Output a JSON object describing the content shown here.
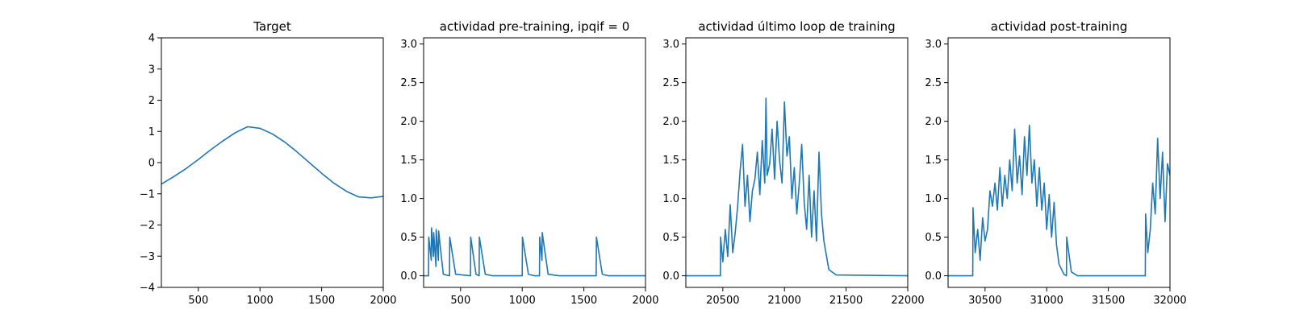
{
  "chart_data": [
    {
      "type": "line",
      "title": "Target",
      "xlabel": "",
      "ylabel": "",
      "xlim": [
        200,
        2000
      ],
      "ylim": [
        -4,
        4
      ],
      "xticks": [
        500,
        1000,
        1500,
        2000
      ],
      "yticks": [
        -4,
        -3,
        -2,
        -1,
        0,
        1,
        2,
        3,
        4
      ],
      "grid": false,
      "series": [
        {
          "color": "#1f77b4",
          "x": [
            200,
            300,
            400,
            500,
            600,
            700,
            800,
            900,
            1000,
            1100,
            1200,
            1300,
            1400,
            1500,
            1600,
            1700,
            1800,
            1900,
            2000
          ],
          "y": [
            -0.69,
            -0.45,
            -0.19,
            0.1,
            0.41,
            0.7,
            0.96,
            1.15,
            1.1,
            0.92,
            0.66,
            0.34,
            0.0,
            -0.34,
            -0.66,
            -0.92,
            -1.1,
            -1.13,
            -1.08
          ]
        }
      ]
    },
    {
      "type": "line",
      "title": "actividad pre-training, ipqif = 0",
      "xlabel": "",
      "ylabel": "",
      "xlim": [
        200,
        2000
      ],
      "ylim": [
        -0.15,
        3.08
      ],
      "xticks": [
        500,
        1000,
        1500,
        2000
      ],
      "yticks": [
        0.0,
        0.5,
        1.0,
        1.5,
        2.0,
        2.5,
        3.0
      ],
      "grid": false,
      "series": [
        {
          "color": "#1f77b4",
          "x": [
            200,
            240,
            242,
            262,
            264,
            280,
            282,
            300,
            302,
            320,
            322,
            360,
            410,
            412,
            460,
            580,
            582,
            625,
            650,
            652,
            700,
            760,
            1000,
            1002,
            1050,
            1100,
            1140,
            1142,
            1160,
            1162,
            1210,
            1300,
            1600,
            1602,
            1650,
            1700,
            2000
          ],
          "y": [
            0,
            0,
            0.5,
            0.2,
            0.62,
            0.25,
            0.56,
            0.12,
            0.6,
            0.2,
            0.58,
            0.02,
            0.0,
            0.5,
            0.02,
            0.0,
            0.5,
            0.02,
            0.0,
            0.5,
            0.02,
            0.0,
            0.0,
            0.5,
            0.02,
            0.0,
            0.0,
            0.5,
            0.2,
            0.56,
            0.02,
            0.0,
            0.0,
            0.5,
            0.02,
            0.0,
            0.0
          ]
        }
      ]
    },
    {
      "type": "line",
      "title": "actividad último loop de training",
      "xlabel": "",
      "ylabel": "",
      "xlim": [
        20200,
        22000
      ],
      "ylim": [
        -0.15,
        3.08
      ],
      "xticks": [
        20500,
        21000,
        21500,
        22000
      ],
      "yticks": [
        0.0,
        0.5,
        1.0,
        1.5,
        2.0,
        2.5,
        3.0
      ],
      "grid": false,
      "series": [
        {
          "color": "#1f77b4",
          "x": [
            20200,
            20480,
            20482,
            20500,
            20520,
            20540,
            20560,
            20580,
            20600,
            20620,
            20640,
            20660,
            20680,
            20700,
            20720,
            20740,
            20760,
            20780,
            20800,
            20820,
            20840,
            20850,
            20860,
            20880,
            20900,
            20920,
            20940,
            20960,
            20980,
            21000,
            21020,
            21040,
            21060,
            21080,
            21100,
            21120,
            21140,
            21160,
            21180,
            21200,
            21220,
            21240,
            21260,
            21280,
            21300,
            21320,
            21360,
            21420,
            22000
          ],
          "y": [
            0,
            0,
            0.5,
            0.18,
            0.6,
            0.25,
            0.92,
            0.3,
            0.55,
            0.9,
            1.35,
            1.7,
            0.9,
            1.3,
            0.7,
            1.1,
            1.25,
            1.6,
            1.05,
            1.75,
            1.2,
            2.3,
            1.3,
            1.45,
            1.9,
            1.25,
            2.0,
            1.5,
            1.2,
            2.25,
            1.55,
            1.8,
            1.0,
            1.4,
            0.8,
            1.2,
            1.7,
            0.95,
            0.6,
            1.3,
            0.5,
            1.1,
            0.45,
            1.6,
            0.8,
            0.45,
            0.08,
            0.01,
            0.0
          ]
        }
      ]
    },
    {
      "type": "line",
      "title": "actividad post-training",
      "xlabel": "",
      "ylabel": "",
      "xlim": [
        30200,
        32000
      ],
      "ylim": [
        -0.15,
        3.08
      ],
      "xticks": [
        30500,
        31000,
        31500,
        32000
      ],
      "yticks": [
        0.0,
        0.5,
        1.0,
        1.5,
        2.0,
        2.5,
        3.0
      ],
      "grid": false,
      "series": [
        {
          "color": "#1f77b4",
          "x": [
            30200,
            30400,
            30402,
            30420,
            30440,
            30460,
            30480,
            30500,
            30520,
            30540,
            30560,
            30580,
            30600,
            30620,
            30640,
            30660,
            30680,
            30700,
            30720,
            30740,
            30760,
            30780,
            30800,
            30820,
            30840,
            30860,
            30880,
            30900,
            30920,
            30940,
            30960,
            30980,
            31000,
            31020,
            31040,
            31060,
            31080,
            31100,
            31140,
            31160,
            31162,
            31200,
            31250,
            31800,
            31802,
            31820,
            31840,
            31860,
            31880,
            31900,
            31920,
            31940,
            31960,
            31980,
            32000
          ],
          "y": [
            0,
            0,
            0.88,
            0.3,
            0.6,
            0.2,
            0.75,
            0.45,
            0.6,
            1.1,
            0.9,
            1.2,
            0.85,
            1.4,
            0.9,
            1.3,
            1.0,
            1.5,
            1.1,
            1.9,
            1.2,
            1.55,
            1.05,
            1.8,
            1.3,
            1.95,
            1.2,
            1.5,
            0.9,
            1.4,
            0.85,
            1.2,
            0.6,
            1.05,
            0.5,
            0.95,
            0.4,
            0.15,
            0.02,
            0.0,
            0.5,
            0.05,
            0.0,
            0.0,
            0.8,
            0.3,
            0.6,
            1.2,
            0.8,
            1.78,
            1.0,
            1.6,
            0.7,
            1.45,
            1.3
          ]
        }
      ]
    }
  ]
}
